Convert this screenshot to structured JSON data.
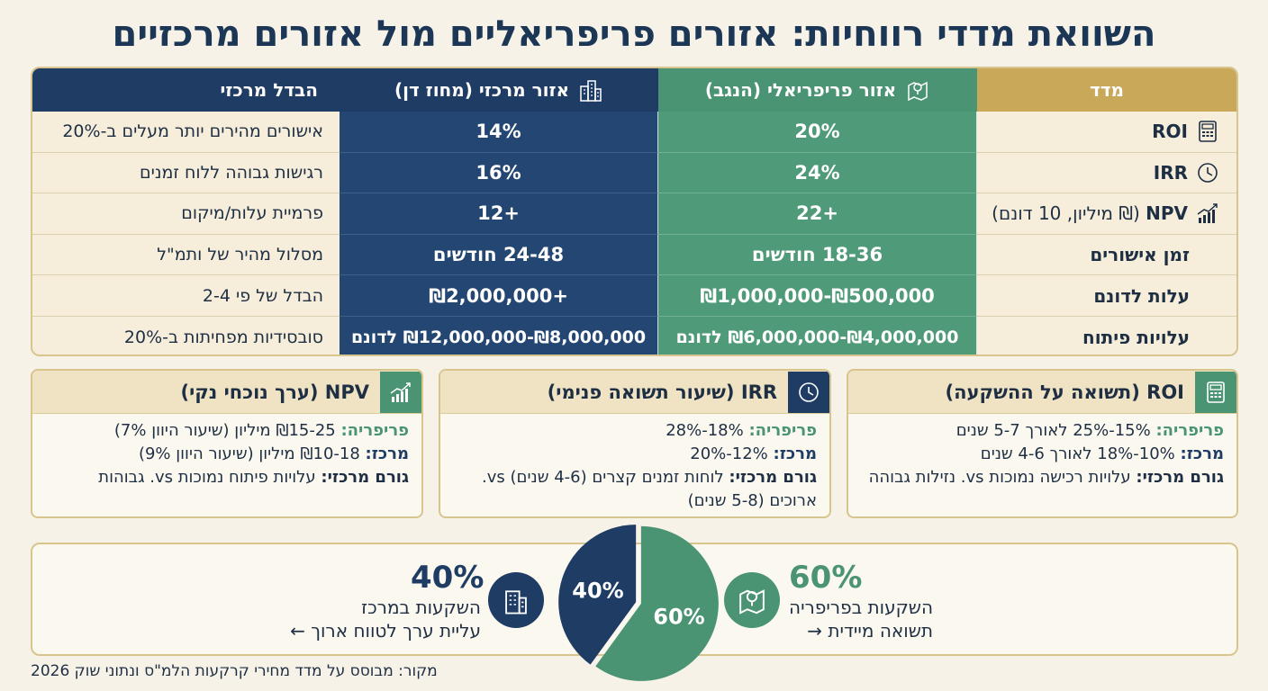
{
  "title": "השוואת מדדי רווחיות: אזורים פריפריאליים מול אזורים מרכזיים",
  "table": {
    "headers": {
      "metric": "מדד",
      "periphery": "אזור פריפריאלי (הנגב)",
      "center": "אזור מרכזי (מחוז דן)",
      "diff": "הבדל מרכזי"
    },
    "rows": [
      {
        "metric": "ROI",
        "metric_sub": "",
        "icon": "calculator-icon",
        "periphery": "20%",
        "center": "14%",
        "diff": "אישורים מהירים יותר מעלים ב-20%"
      },
      {
        "metric": "IRR",
        "metric_sub": "",
        "icon": "clock-icon",
        "periphery": "24%",
        "center": "16%",
        "diff": "רגישות גבוהה ללוח זמנים"
      },
      {
        "metric": "NPV",
        "metric_sub": " (₪ מיליון, 10 דונם)",
        "icon": "growth-chart-icon",
        "periphery": "+22",
        "center": "+12",
        "diff": "פרמיית עלות/מיקום"
      },
      {
        "metric": "זמן אישורים",
        "metric_sub": "",
        "icon": "",
        "periphery": "18-36 חודשים",
        "center": "24-48 חודשים",
        "diff": "מסלול מהיר של ותמ\"ל"
      },
      {
        "metric": "עלות לדונם",
        "metric_sub": "",
        "icon": "",
        "periphery": "₪500,000-₪1,000,000",
        "center": "+₪2,000,000",
        "diff": "הבדל של פי 2-4"
      },
      {
        "metric": "עלויות פיתוח",
        "metric_sub": "",
        "icon": "",
        "periphery": "₪4,000,000-₪6,000,000 לדונם",
        "center": "₪8,000,000-₪12,000,000 לדונם",
        "diff": "סובסידיות מפחיתות ב-20%"
      }
    ]
  },
  "cards": {
    "roi": {
      "title": "ROI (תשואה על ההשקעה)",
      "p_label": "פריפריה:",
      "p_text": " 15%-25% לאורך 5-7 שנים",
      "c_label": "מרכז:",
      "c_text": " 10%-18% לאורך 4-6 שנים",
      "k_label": "גורם מרכזי:",
      "k_text": " עלויות רכישה נמוכות vs. נזילות גבוהה"
    },
    "irr": {
      "title": "IRR (שיעור תשואה פנימי)",
      "p_label": "פריפריה:",
      "p_text": " 18%-28%",
      "c_label": "מרכז:",
      "c_text": " 12%-20%",
      "k_label": "גורם מרכזי:",
      "k_text": " לוחות זמנים קצרים (4-6 שנים) vs. ארוכים (5-8 שנים)"
    },
    "npv": {
      "title": "NPV (ערך נוכחי נקי)",
      "p_label": "פריפריה:",
      "p_text": " ₪15-25 מיליון (שיעור היוון 7%)",
      "c_label": "מרכז:",
      "c_text": " ₪10-18 מיליון (שיעור היוון 9%)",
      "k_label": "גורם מרכזי:",
      "k_text": " עלויות פיתוח נמוכות vs. גבוהות"
    }
  },
  "allocation": {
    "periphery": {
      "pct": "60%",
      "label": "השקעות בפריפריה",
      "note": "תשואה מיידית →",
      "value": 60
    },
    "center": {
      "pct": "40%",
      "label": "השקעות במרכז",
      "note": "עליית ערך לטווח ארוך ←",
      "value": 40
    }
  },
  "colors": {
    "periphery": "#4a9474",
    "center": "#1e3c64",
    "gold": "#c9a85a"
  },
  "source": "מקור: מבוסס על מדד מחירי קרקעות הלמ\"ס ונתוני שוק 2026"
}
